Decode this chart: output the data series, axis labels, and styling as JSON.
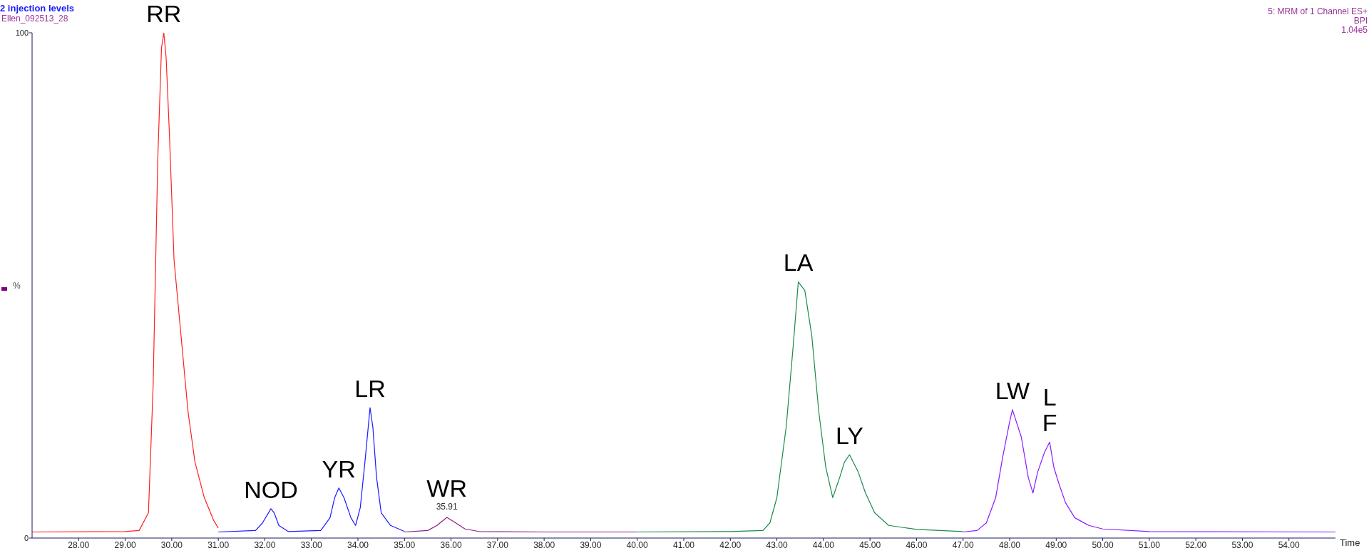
{
  "chart_data": {
    "type": "line",
    "title": "2 injection levels",
    "subtitle": "Ellen_092513_28",
    "xlabel": "Time",
    "ylabel": "%",
    "xlim": [
      27.0,
      55.0
    ],
    "xticks": [
      {
        "value": 28,
        "label": "28.00"
      },
      {
        "value": 29,
        "label": "29.00"
      },
      {
        "value": 30,
        "label": "30.00"
      },
      {
        "value": 31,
        "label": "31.00"
      },
      {
        "value": 32,
        "label": "32.00"
      },
      {
        "value": 33,
        "label": "33.00"
      },
      {
        "value": 34,
        "label": "34.00"
      },
      {
        "value": 35,
        "label": "35.00"
      },
      {
        "value": 36,
        "label": "36.00"
      },
      {
        "value": 37,
        "label": "37.00"
      },
      {
        "value": 38,
        "label": "38.00"
      },
      {
        "value": 39,
        "label": "39.00"
      },
      {
        "value": 40,
        "label": "40.00"
      },
      {
        "value": 41,
        "label": "41.00"
      },
      {
        "value": 42,
        "label": "42.00"
      },
      {
        "value": 43,
        "label": "43.00"
      },
      {
        "value": 44,
        "label": "44.00"
      },
      {
        "value": 45,
        "label": "45.00"
      },
      {
        "value": 46,
        "label": "46.00"
      },
      {
        "value": 47,
        "label": "47.00"
      },
      {
        "value": 48,
        "label": "48.00"
      },
      {
        "value": 49,
        "label": "49.00"
      },
      {
        "value": 50,
        "label": "50.00"
      },
      {
        "value": 51,
        "label": "51.00"
      },
      {
        "value": 52,
        "label": "52.00"
      },
      {
        "value": 53,
        "label": "53.00"
      },
      {
        "value": 54,
        "label": "54.00"
      }
    ],
    "ylim": [
      0,
      100
    ],
    "yticks": [
      0,
      100
    ],
    "grid": false,
    "legend": false,
    "marker": "none",
    "line_style": "solid",
    "series": [
      {
        "color": "#ff2020",
        "x": [
          27.0,
          29.0,
          29.3,
          29.5,
          29.6,
          29.7,
          29.78,
          29.83,
          29.88,
          29.95,
          30.05,
          30.2,
          30.35,
          30.5,
          30.7,
          30.9,
          31.0
        ],
        "values": [
          1.2,
          1.3,
          1.5,
          5,
          30,
          75,
          97,
          100,
          95,
          80,
          55,
          40,
          25,
          15,
          8,
          3.5,
          2
        ]
      },
      {
        "color": "#1a1aff",
        "x": [
          31.0,
          31.8,
          31.95,
          32.13,
          32.2,
          32.3,
          32.5,
          33.2,
          33.4,
          33.5,
          33.59,
          33.7,
          33.85,
          33.95,
          34.05,
          34.15,
          34.26,
          34.32,
          34.4,
          34.5,
          34.7,
          35.0
        ],
        "values": [
          1.2,
          1.5,
          3,
          5.8,
          5,
          2.5,
          1.3,
          1.5,
          4,
          8,
          9.9,
          8,
          4,
          2.5,
          6,
          15,
          25.8,
          22,
          12,
          5,
          2.5,
          1.3
        ]
      },
      {
        "color": "#8b1a8b",
        "x": [
          35.0,
          35.5,
          35.7,
          35.91,
          36.1,
          36.3,
          36.6,
          38.0,
          40.0
        ],
        "values": [
          1.2,
          1.5,
          2.5,
          4.1,
          3,
          1.8,
          1.3,
          1.2,
          1.2
        ]
      },
      {
        "color": "#1a8a4a",
        "x": [
          40.0,
          42.0,
          42.7,
          42.85,
          43.0,
          43.2,
          43.35,
          43.46,
          43.6,
          43.75,
          43.9,
          44.05,
          44.2,
          44.35,
          44.45,
          44.56,
          44.75,
          44.9,
          45.1,
          45.4,
          46.0,
          47.0
        ],
        "values": [
          1.2,
          1.3,
          1.5,
          3,
          8,
          22,
          38,
          50.7,
          49,
          40,
          25,
          14,
          8,
          12,
          15,
          16.5,
          13,
          9,
          5,
          2.5,
          1.7,
          1.3
        ]
      },
      {
        "color": "#8a1aff",
        "x": [
          47.0,
          47.3,
          47.5,
          47.7,
          47.85,
          48.0,
          48.06,
          48.25,
          48.4,
          48.5,
          48.6,
          48.75,
          48.86,
          48.95,
          49.05,
          49.2,
          49.4,
          49.7,
          50.0,
          51.0,
          55.0
        ],
        "values": [
          1.2,
          1.5,
          3,
          8,
          16,
          23,
          25.4,
          20,
          12,
          8.9,
          13,
          17,
          19,
          14,
          11,
          7,
          4,
          2.5,
          1.8,
          1.3,
          1.2
        ]
      }
    ],
    "annotations": [
      "5: MRM of 1 Channel ES+",
      "BPI",
      "1.04e5",
      {
        "text": "RR",
        "x": 29.83,
        "y": 100
      },
      {
        "text": "NOD",
        "x": 32.13,
        "y": 5.8
      },
      {
        "text": "YR",
        "x": 33.59,
        "y": 9.9
      },
      {
        "text": "LR",
        "x": 34.26,
        "y": 25.8
      },
      {
        "text": "WR",
        "x": 35.91,
        "y": 4.1
      },
      {
        "text": "35.91",
        "x": 35.91,
        "y": 4.1
      },
      {
        "text": "LA",
        "x": 43.46,
        "y": 50.7
      },
      {
        "text": "LY",
        "x": 44.56,
        "y": 16.5
      },
      {
        "text": "LW",
        "x": 48.06,
        "y": 25.4
      },
      {
        "text": "L\nF",
        "x": 48.86,
        "y": 19
      }
    ]
  }
}
